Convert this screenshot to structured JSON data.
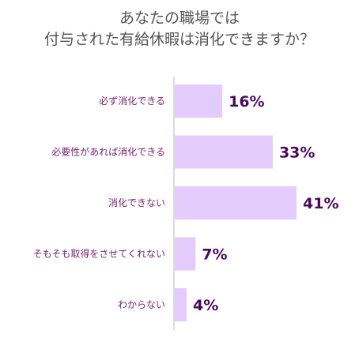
{
  "title": {
    "line1": "あなたの職場では",
    "line2": "付与された有給休暇は消化できますか？"
  },
  "colors": {
    "bar": "#e3ccfb",
    "category_text": "#7a1f70",
    "value_text": "#4a0a5c",
    "axis": "#b8b8b8",
    "title_text": "#555555"
  },
  "chart_data": {
    "type": "bar",
    "orientation": "horizontal",
    "title": "あなたの職場では 付与された有給休暇は消化できますか？",
    "categories": [
      "必ず消化できる",
      "必要性があれば消化できる",
      "消化できない",
      "そもそも取得をさせてくれない",
      "わからない"
    ],
    "values": [
      16,
      33,
      41,
      7,
      4
    ],
    "value_labels": [
      "16%",
      "33%",
      "41%",
      "7%",
      "4%"
    ],
    "unit": "%",
    "xlim": [
      0,
      41
    ],
    "grid": false,
    "legend": "none"
  }
}
